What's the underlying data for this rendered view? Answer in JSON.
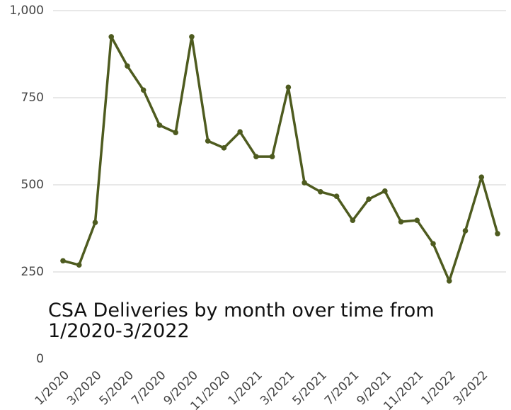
{
  "chart_data": {
    "type": "line",
    "title": "CSA Deliveries by month over time from 1/2020-3/2022",
    "categories": [
      "1/2020",
      null,
      "3/2020",
      null,
      "5/2020",
      null,
      "7/2020",
      null,
      "9/2020",
      null,
      "11/2020",
      null,
      "1/2021",
      null,
      "3/2021",
      null,
      "5/2021",
      null,
      "7/2021",
      null,
      "9/2021",
      null,
      "11/2021",
      null,
      "1/2022",
      null,
      "3/2022",
      null
    ],
    "series": [
      {
        "color": "#4e5b1f",
        "values": [
          282,
          270,
          392,
          925,
          841,
          772,
          671,
          650,
          925,
          626,
          606,
          652,
          581,
          581,
          780,
          506,
          480,
          467,
          398,
          459,
          482,
          394,
          398,
          331,
          224,
          368,
          522,
          360
        ]
      }
    ],
    "ylim": [
      0,
      1000
    ],
    "yticks": [
      0,
      250,
      500,
      750,
      {
        "value": 1000,
        "label": "1,000"
      }
    ],
    "grid": true
  }
}
